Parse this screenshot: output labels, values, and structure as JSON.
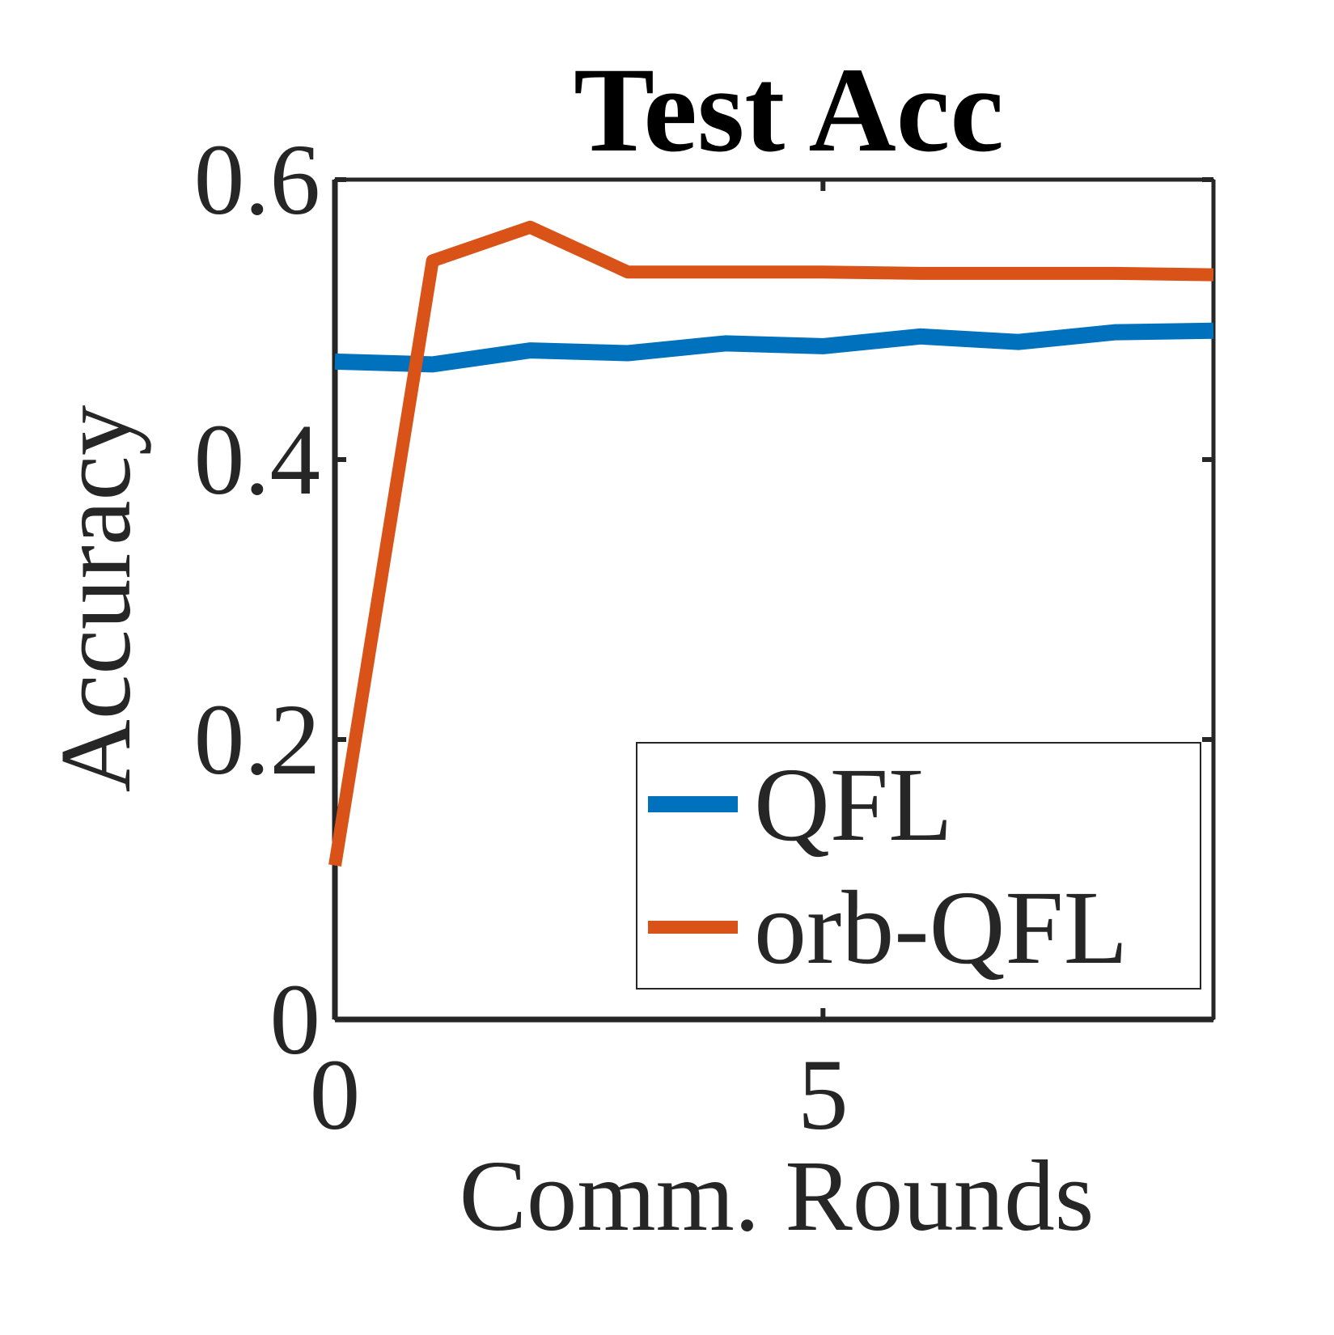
{
  "chart_data": {
    "type": "line",
    "title": "Test Acc",
    "xlabel": "Comm. Rounds",
    "ylabel": "Accuracy",
    "xlim": [
      0,
      9
    ],
    "ylim": [
      0,
      0.6
    ],
    "xticks": [
      0,
      5
    ],
    "xtick_labels": [
      "0",
      "5"
    ],
    "yticks": [
      0,
      0.2,
      0.4,
      0.6
    ],
    "ytick_labels": [
      "0",
      "0.2",
      "0.4",
      "0.6"
    ],
    "x": [
      0,
      1,
      2,
      3,
      4,
      5,
      6,
      7,
      8,
      9
    ],
    "series": [
      {
        "name": "QFL",
        "color": "#0072BD",
        "values": [
          0.47,
          0.468,
          0.478,
          0.476,
          0.483,
          0.481,
          0.488,
          0.484,
          0.491,
          0.492
        ]
      },
      {
        "name": "orb-QFL",
        "color": "#D95319",
        "values": [
          0.11,
          0.542,
          0.566,
          0.534,
          0.534,
          0.534,
          0.533,
          0.533,
          0.533,
          0.532
        ]
      }
    ],
    "grid": false,
    "legend_position": "bottom-right"
  }
}
